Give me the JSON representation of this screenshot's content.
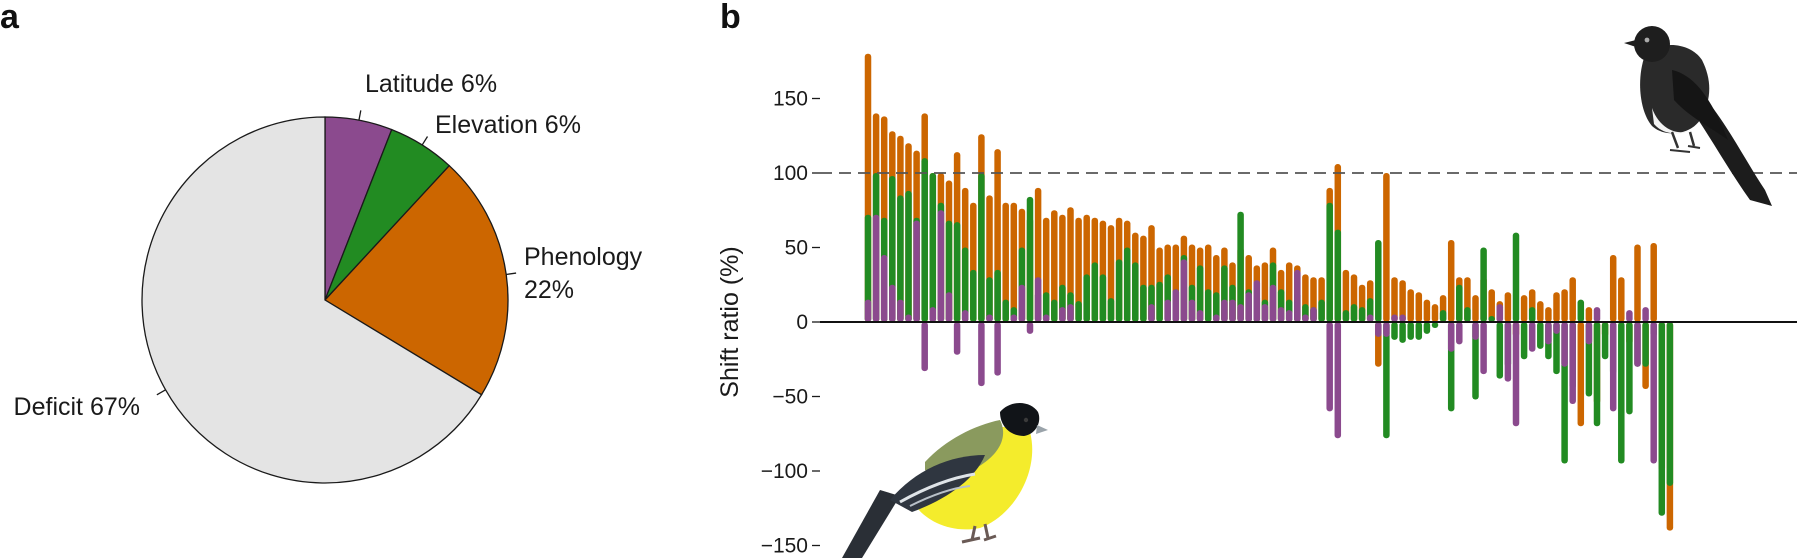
{
  "panels": {
    "a_label": "a",
    "b_label": "b"
  },
  "chart_data": [
    {
      "type": "pie",
      "panel": "a",
      "title": "",
      "start_angle_deg": 0,
      "direction": "clockwise",
      "edge_color": "#1a1a1a",
      "slices": [
        {
          "label": "Latitude 6%",
          "value": 6,
          "color": "#8B4A8E"
        },
        {
          "label": "Elevation 6%",
          "value": 6,
          "color": "#228B22"
        },
        {
          "label": "Phenology",
          "label_line2": "22%",
          "value": 22,
          "color": "#CC6600"
        },
        {
          "label": "Deficit 67%",
          "value": 67,
          "color": "#E4E4E4"
        }
      ]
    },
    {
      "type": "bar",
      "panel": "b",
      "title": "",
      "xlabel": "",
      "ylabel": "Shift ratio (%)",
      "ylim": [
        -150,
        180
      ],
      "yticks": [
        150,
        100,
        50,
        0,
        -50,
        -100,
        -150
      ],
      "ytick_labels": [
        "150",
        "100",
        "50",
        "0",
        "−50",
        "−100",
        "−150"
      ],
      "reference_line": {
        "y": 100,
        "style": "dashed",
        "color": "#555555"
      },
      "zero_line": {
        "y": 0,
        "color": "#111111"
      },
      "grid": false,
      "colors": {
        "Latitude": "#8B4A8E",
        "Elevation": "#228B22",
        "Phenology": "#CC6600"
      },
      "series_order": [
        "Phenology",
        "Elevation",
        "Latitude"
      ],
      "species": [
        {
          "Phenology": 180,
          "Elevation": 72,
          "Latitude": 15
        },
        {
          "Phenology": 140,
          "Elevation": 100,
          "Latitude": 72
        },
        {
          "Phenology": 138,
          "Elevation": 70,
          "Latitude": 45
        },
        {
          "Phenology": 128,
          "Elevation": 98,
          "Latitude": 25
        },
        {
          "Phenology": 125,
          "Elevation": 85,
          "Latitude": 15
        },
        {
          "Phenology": 120,
          "Elevation": 88,
          "Latitude": 5
        },
        {
          "Phenology": 115,
          "Elevation": 70,
          "Latitude": 68
        },
        {
          "Phenology": 140,
          "Elevation": 110,
          "Latitude": -33
        },
        {
          "Phenology": 100,
          "Elevation": 100,
          "Latitude": 10
        },
        {
          "Phenology": 100,
          "Elevation": 80,
          "Latitude": 75
        },
        {
          "Phenology": 95,
          "Elevation": 68,
          "Latitude": 20
        },
        {
          "Phenology": 114,
          "Elevation": 67,
          "Latitude": -22
        },
        {
          "Phenology": 90,
          "Elevation": 50,
          "Latitude": 8
        },
        {
          "Phenology": 80,
          "Elevation": 35,
          "Latitude": 0
        },
        {
          "Phenology": 126,
          "Elevation": 100,
          "Latitude": -43
        },
        {
          "Phenology": 85,
          "Elevation": 30,
          "Latitude": 5
        },
        {
          "Phenology": 116,
          "Elevation": 35,
          "Latitude": -36
        },
        {
          "Phenology": 80,
          "Elevation": 15,
          "Latitude": 0
        },
        {
          "Phenology": 80,
          "Elevation": 10,
          "Latitude": 5
        },
        {
          "Phenology": 76,
          "Elevation": 50,
          "Latitude": 25
        },
        {
          "Phenology": 70,
          "Elevation": 84,
          "Latitude": -8
        },
        {
          "Phenology": 90,
          "Elevation": 20,
          "Latitude": 30
        },
        {
          "Phenology": 70,
          "Elevation": 20,
          "Latitude": 5
        },
        {
          "Phenology": 75,
          "Elevation": 15,
          "Latitude": 0
        },
        {
          "Phenology": 72,
          "Elevation": 25,
          "Latitude": 10
        },
        {
          "Phenology": 77,
          "Elevation": 20,
          "Latitude": 12
        },
        {
          "Phenology": 70,
          "Elevation": 14,
          "Latitude": 0
        },
        {
          "Phenology": 72,
          "Elevation": 32,
          "Latitude": 0
        },
        {
          "Phenology": 70,
          "Elevation": 40,
          "Latitude": 0
        },
        {
          "Phenology": 68,
          "Elevation": 32,
          "Latitude": 0
        },
        {
          "Phenology": 65,
          "Elevation": 16,
          "Latitude": 0
        },
        {
          "Phenology": 70,
          "Elevation": 42,
          "Latitude": 0
        },
        {
          "Phenology": 68,
          "Elevation": 50,
          "Latitude": 0
        },
        {
          "Phenology": 60,
          "Elevation": 40,
          "Latitude": 0
        },
        {
          "Phenology": 58,
          "Elevation": 25,
          "Latitude": 0
        },
        {
          "Phenology": 65,
          "Elevation": 25,
          "Latitude": 12
        },
        {
          "Phenology": 50,
          "Elevation": 27,
          "Latitude": 0
        },
        {
          "Phenology": 52,
          "Elevation": 32,
          "Latitude": 15
        },
        {
          "Phenology": 52,
          "Elevation": 22,
          "Latitude": 22
        },
        {
          "Phenology": 58,
          "Elevation": 45,
          "Latitude": 42
        },
        {
          "Phenology": 52,
          "Elevation": 25,
          "Latitude": 15
        },
        {
          "Phenology": 50,
          "Elevation": 38,
          "Latitude": 8
        },
        {
          "Phenology": 52,
          "Elevation": 22,
          "Latitude": 0
        },
        {
          "Phenology": 45,
          "Elevation": 20,
          "Latitude": 5
        },
        {
          "Phenology": 50,
          "Elevation": 38,
          "Latitude": 15
        },
        {
          "Phenology": 40,
          "Elevation": 25,
          "Latitude": 15
        },
        {
          "Phenology": 50,
          "Elevation": 74,
          "Latitude": 12
        },
        {
          "Phenology": 45,
          "Elevation": 22,
          "Latitude": 20
        },
        {
          "Phenology": 38,
          "Elevation": 18,
          "Latitude": 28
        },
        {
          "Phenology": 40,
          "Elevation": 15,
          "Latitude": 12
        },
        {
          "Phenology": 50,
          "Elevation": 40,
          "Latitude": 25
        },
        {
          "Phenology": 35,
          "Elevation": 22,
          "Latitude": 10
        },
        {
          "Phenology": 40,
          "Elevation": 15,
          "Latitude": 8
        },
        {
          "Phenology": 38,
          "Elevation": 20,
          "Latitude": 35
        },
        {
          "Phenology": 32,
          "Elevation": 12,
          "Latitude": 5
        },
        {
          "Phenology": 30,
          "Elevation": 10,
          "Latitude": 10
        },
        {
          "Phenology": 30,
          "Elevation": 15,
          "Latitude": 0
        },
        {
          "Phenology": 90,
          "Elevation": 80,
          "Latitude": -60
        },
        {
          "Phenology": 106,
          "Elevation": 62,
          "Latitude": -78
        },
        {
          "Phenology": 35,
          "Elevation": 8,
          "Latitude": 0
        },
        {
          "Phenology": 32,
          "Elevation": 12,
          "Latitude": 0
        },
        {
          "Phenology": 25,
          "Elevation": 10,
          "Latitude": 0
        },
        {
          "Phenology": 28,
          "Elevation": 16,
          "Latitude": 5
        },
        {
          "Phenology": -30,
          "Elevation": 55,
          "Latitude": -10
        },
        {
          "Phenology": 100,
          "Elevation": -78,
          "Latitude": -10
        },
        {
          "Phenology": 30,
          "Elevation": -12,
          "Latitude": 5
        },
        {
          "Phenology": 28,
          "Elevation": -14,
          "Latitude": 5
        },
        {
          "Phenology": 22,
          "Elevation": -12,
          "Latitude": 0
        },
        {
          "Phenology": 20,
          "Elevation": -12,
          "Latitude": 0
        },
        {
          "Phenology": 15,
          "Elevation": -8,
          "Latitude": 0
        },
        {
          "Phenology": 12,
          "Elevation": -4,
          "Latitude": 0
        },
        {
          "Phenology": 18,
          "Elevation": 8,
          "Latitude": 0
        },
        {
          "Phenology": 55,
          "Elevation": -60,
          "Latitude": -20
        },
        {
          "Phenology": 30,
          "Elevation": 25,
          "Latitude": -15
        },
        {
          "Phenology": 30,
          "Elevation": 10,
          "Latitude": 0
        },
        {
          "Phenology": 18,
          "Elevation": -52,
          "Latitude": -12
        },
        {
          "Phenology": 30,
          "Elevation": 50,
          "Latitude": -35
        },
        {
          "Phenology": 22,
          "Elevation": 4,
          "Latitude": 0
        },
        {
          "Phenology": 14,
          "Elevation": -38,
          "Latitude": 12
        },
        {
          "Phenology": 20,
          "Elevation": -30,
          "Latitude": -40
        },
        {
          "Phenology": -10,
          "Elevation": 60,
          "Latitude": -70
        },
        {
          "Phenology": 18,
          "Elevation": -25,
          "Latitude": 0
        },
        {
          "Phenology": 22,
          "Elevation": 10,
          "Latitude": -20
        },
        {
          "Phenology": 14,
          "Elevation": -18,
          "Latitude": 0
        },
        {
          "Phenology": 10,
          "Elevation": -25,
          "Latitude": -15
        },
        {
          "Phenology": 20,
          "Elevation": -35,
          "Latitude": -8
        },
        {
          "Phenology": 22,
          "Elevation": -95,
          "Latitude": -30
        },
        {
          "Phenology": 30,
          "Elevation": -45,
          "Latitude": -55
        },
        {
          "Phenology": -70,
          "Elevation": 15,
          "Latitude": 0
        },
        {
          "Phenology": 10,
          "Elevation": -50,
          "Latitude": -15
        },
        {
          "Phenology": -55,
          "Elevation": -70,
          "Latitude": 10
        },
        {
          "Phenology": -10,
          "Elevation": -25,
          "Latitude": 0
        },
        {
          "Phenology": 45,
          "Elevation": -35,
          "Latitude": -60
        },
        {
          "Phenology": 30,
          "Elevation": -95,
          "Latitude": 0
        },
        {
          "Phenology": -15,
          "Elevation": -62,
          "Latitude": 8
        },
        {
          "Phenology": 52,
          "Elevation": -30,
          "Latitude": -30
        },
        {
          "Phenology": -45,
          "Elevation": -30,
          "Latitude": 10
        },
        {
          "Phenology": 53,
          "Elevation": -10,
          "Latitude": -95
        },
        {
          "Phenology": -100,
          "Elevation": -130,
          "Latitude": 0
        },
        {
          "Phenology": -140,
          "Elevation": -110,
          "Latitude": 0
        }
      ]
    }
  ],
  "illustrations": [
    "black-phoebe-bird-icon",
    "lesser-goldfinch-bird-icon"
  ]
}
